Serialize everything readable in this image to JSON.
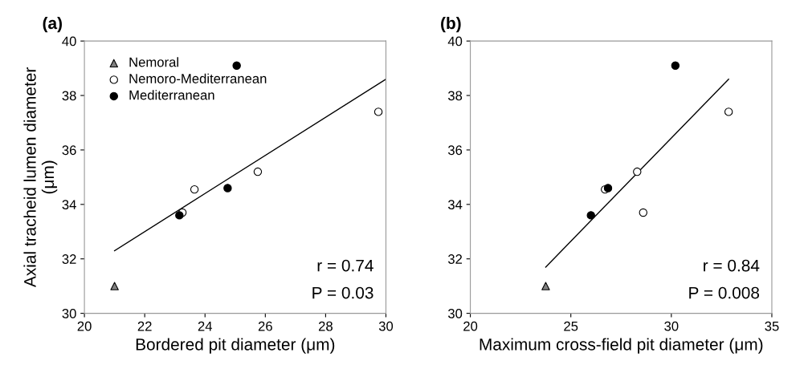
{
  "chart_data": [
    {
      "type": "scatter",
      "title": "(a)",
      "xlabel": "Bordered pit diameter (μm)",
      "ylabel": "Axial tracheid lumen diameter\n(μm)",
      "xlim": [
        20,
        30
      ],
      "ylim": [
        30,
        40
      ],
      "xticks": [
        20,
        22,
        24,
        26,
        28,
        30
      ],
      "yticks": [
        30,
        32,
        34,
        36,
        38,
        40
      ],
      "legend": "top left",
      "grid": false,
      "series": [
        {
          "name": "Nemoral",
          "color": "#808080",
          "marker": "triangle",
          "x": [
            21.0
          ],
          "values": [
            31.0
          ]
        },
        {
          "name": "Nemoro-Mediterranean",
          "color": "#ffffff",
          "marker": "circle",
          "x": [
            23.25,
            23.65,
            25.75,
            29.75
          ],
          "values": [
            33.7,
            34.55,
            35.2,
            37.4
          ]
        },
        {
          "name": "Mediterranean",
          "color": "#000000",
          "marker": "circle",
          "x": [
            23.15,
            24.75,
            25.05
          ],
          "values": [
            33.6,
            34.6,
            39.1
          ]
        },
        {
          "type": "line",
          "color": "#000000",
          "x": [
            21.0,
            30.0
          ],
          "values": [
            32.3,
            38.6
          ]
        }
      ],
      "annotations": [
        "r = 0.74",
        "P = 0.03"
      ]
    },
    {
      "type": "scatter",
      "title": "(b)",
      "xlabel": "Maximum cross-field pit diameter (μm)",
      "xlim": [
        20,
        35
      ],
      "ylim": [
        30,
        40
      ],
      "xticks": [
        20,
        25,
        30,
        35
      ],
      "yticks": [
        30,
        32,
        34,
        36,
        38,
        40
      ],
      "legend": false,
      "grid": false,
      "series": [
        {
          "color": "#808080",
          "marker": "triangle",
          "x": [
            23.75
          ],
          "values": [
            31.0
          ]
        },
        {
          "color": "#ffffff",
          "marker": "circle",
          "x": [
            26.7,
            28.3,
            28.6,
            32.85
          ],
          "values": [
            34.55,
            35.2,
            33.7,
            37.4
          ]
        },
        {
          "color": "#000000",
          "marker": "circle",
          "x": [
            26.0,
            26.85,
            30.2
          ],
          "values": [
            33.6,
            34.6,
            39.1
          ]
        },
        {
          "type": "line",
          "color": "#000000",
          "x": [
            23.75,
            32.85
          ],
          "values": [
            31.7,
            38.6
          ]
        }
      ],
      "annotations": [
        "r = 0.84",
        "P = 0.008"
      ]
    }
  ]
}
